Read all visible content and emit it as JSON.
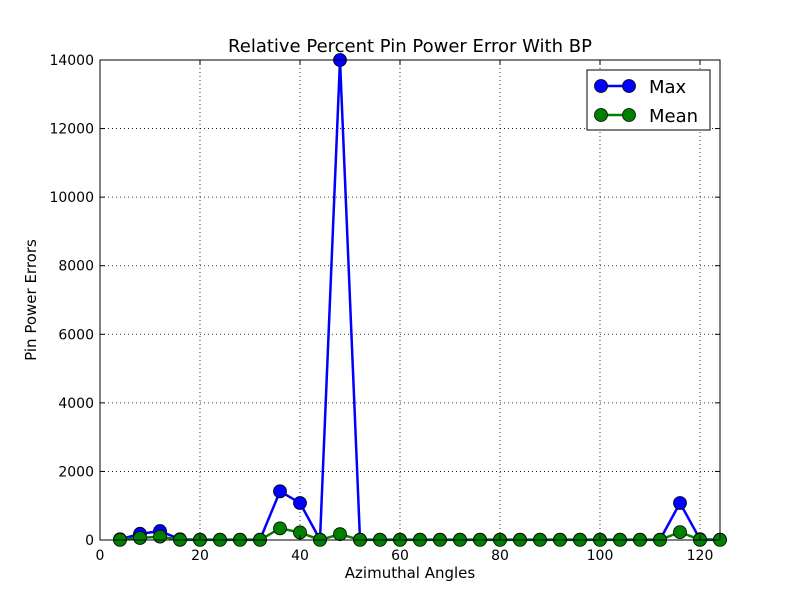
{
  "chart_data": {
    "type": "line",
    "title": "Relative Percent Pin Power Error With BP",
    "xlabel": "Azimuthal Angles",
    "ylabel": "Pin Power Errors",
    "xlim": [
      0,
      124
    ],
    "ylim": [
      0,
      14000
    ],
    "xticks": [
      0,
      20,
      40,
      60,
      80,
      100,
      120
    ],
    "yticks": [
      0,
      2000,
      4000,
      6000,
      8000,
      10000,
      12000,
      14000
    ],
    "grid": true,
    "legend_position": "top-right",
    "x": [
      4,
      8,
      12,
      16,
      20,
      24,
      28,
      32,
      36,
      40,
      44,
      48,
      52,
      56,
      60,
      64,
      68,
      72,
      76,
      80,
      84,
      88,
      92,
      96,
      100,
      104,
      108,
      112,
      116,
      120,
      124
    ],
    "series": [
      {
        "name": "Max",
        "color": "#0000ff",
        "values": [
          20,
          180,
          260,
          20,
          10,
          10,
          10,
          10,
          1420,
          1080,
          10,
          14000,
          10,
          10,
          10,
          10,
          10,
          10,
          10,
          10,
          10,
          10,
          10,
          10,
          10,
          10,
          10,
          10,
          1080,
          20,
          10
        ]
      },
      {
        "name": "Mean",
        "color": "#008000",
        "values": [
          5,
          60,
          100,
          5,
          3,
          3,
          3,
          3,
          340,
          220,
          3,
          170,
          3,
          3,
          3,
          3,
          3,
          3,
          3,
          3,
          3,
          3,
          3,
          3,
          3,
          3,
          3,
          3,
          230,
          5,
          3
        ]
      }
    ]
  }
}
